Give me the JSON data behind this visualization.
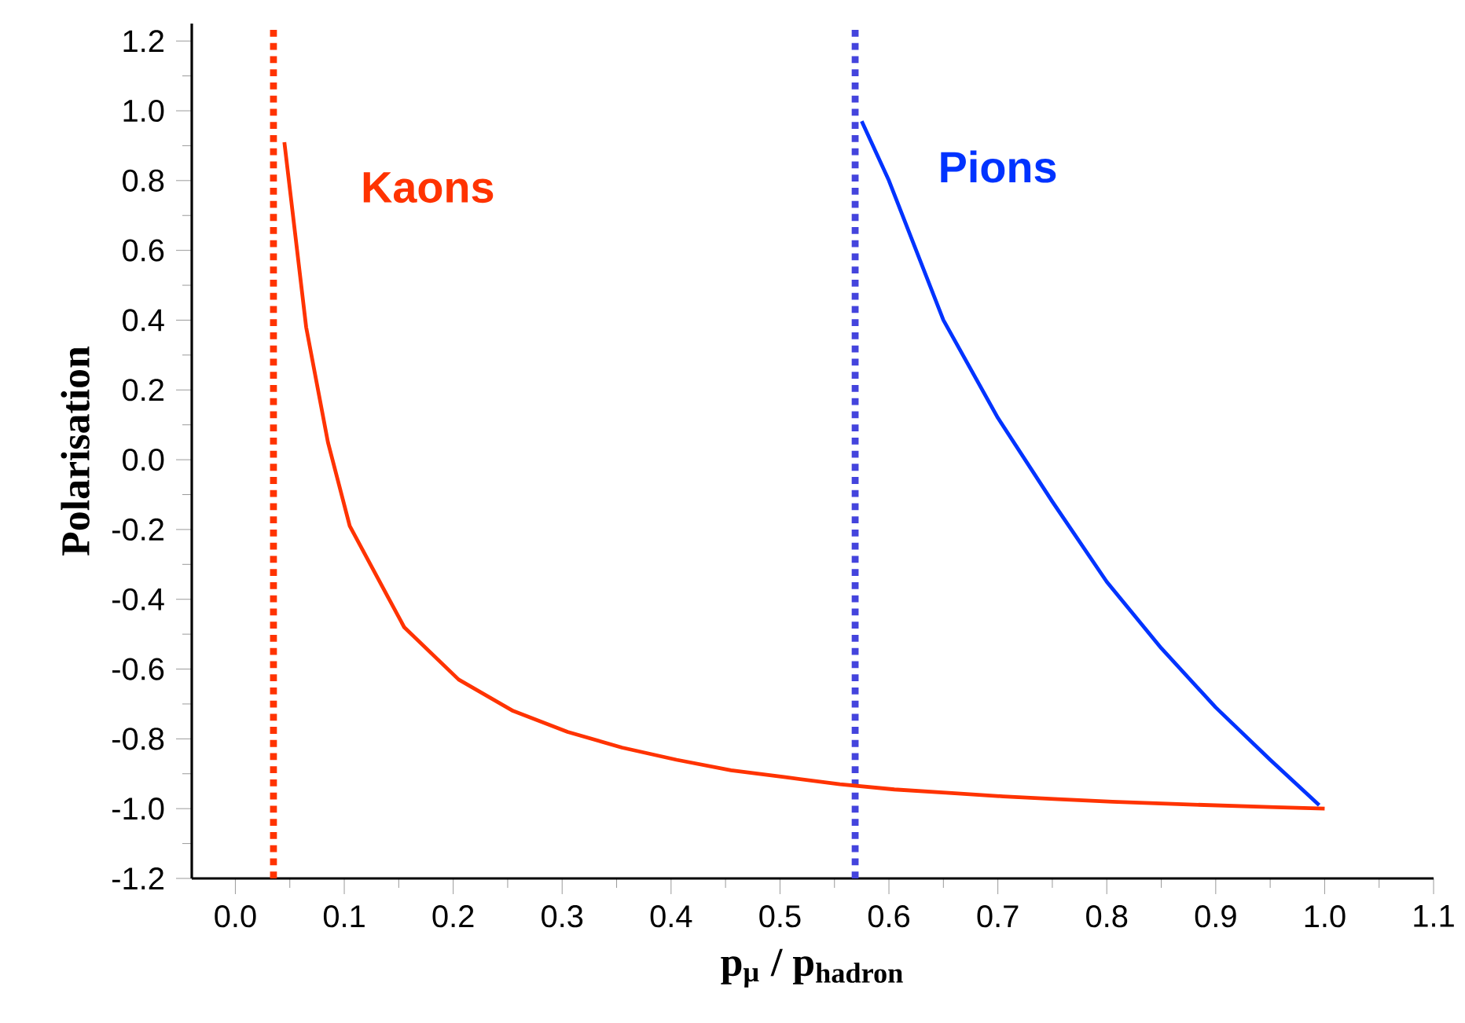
{
  "chart_data": {
    "type": "line",
    "xlabel": "p$_{μ}$ / p$_{hadron}$",
    "ylabel": "Polarisation",
    "xlim": [
      -0.04,
      1.1
    ],
    "ylim": [
      -1.2,
      1.25
    ],
    "xticks": [
      {
        "value": 0,
        "label": "0.0"
      },
      0.1,
      0.2,
      0.3,
      0.4,
      0.5,
      0.6,
      0.7,
      0.8,
      0.9,
      {
        "value": 1,
        "label": "1.0"
      },
      1.1
    ],
    "yticks": [
      -1.2,
      {
        "value": -1,
        "label": "-1.0"
      },
      -0.8,
      -0.6,
      -0.4,
      -0.2,
      {
        "value": 0,
        "label": "0.0"
      },
      0.2,
      0.4,
      0.6,
      0.8,
      {
        "value": 1,
        "label": "1.0"
      },
      1.2
    ],
    "grid": false,
    "legend": false,
    "marker": "none",
    "line_style": "solid",
    "series": [
      {
        "name": "Kaons",
        "color": "#ff3300",
        "x": [
          0.045,
          0.065,
          0.085,
          0.105,
          0.155,
          0.205,
          0.255,
          0.305,
          0.355,
          0.405,
          0.455,
          0.505,
          0.555,
          0.605,
          0.655,
          0.705,
          0.755,
          0.805,
          0.855,
          0.905,
          0.955,
          1.0
        ],
        "values": [
          0.91,
          0.38,
          0.05,
          -0.19,
          -0.48,
          -0.63,
          -0.72,
          -0.78,
          -0.825,
          -0.86,
          -0.89,
          -0.91,
          -0.93,
          -0.945,
          -0.955,
          -0.965,
          -0.973,
          -0.98,
          -0.986,
          -0.991,
          -0.996,
          -1.0
        ]
      },
      {
        "name": "Pions",
        "color": "#0033ff",
        "x": [
          0.575,
          0.6,
          0.65,
          0.7,
          0.75,
          0.8,
          0.85,
          0.9,
          0.95,
          0.995
        ],
        "values": [
          0.97,
          0.8,
          0.4,
          0.12,
          -0.12,
          -0.35,
          -0.54,
          -0.71,
          -0.86,
          -0.99
        ]
      }
    ],
    "ref_lines": [
      {
        "axis": "x",
        "value": 0.035,
        "label": null,
        "color": "#ff3300",
        "line_style": "dotted"
      },
      {
        "axis": "x",
        "value": 0.569,
        "label": null,
        "color": "#4444dd",
        "line_style": "dotted"
      }
    ]
  }
}
